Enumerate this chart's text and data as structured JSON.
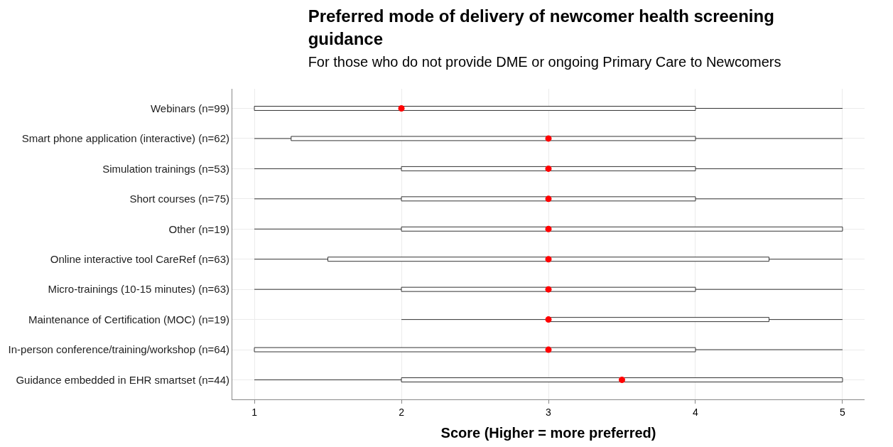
{
  "chart_data": {
    "type": "box",
    "orientation": "horizontal",
    "title": "Preferred mode of delivery of newcomer health screening guidance",
    "subtitle": "For those who do not provide DME or ongoing Primary Care to Newcomers",
    "xlabel": "Score (Higher = more preferred)",
    "categories": [
      "Webinars (n=99)",
      "Smart phone application (interactive) (n=62)",
      "Simulation trainings (n=53)",
      "Short courses (n=75)",
      "Other (n=19)",
      "Online interactive tool CareRef (n=63)",
      "Micro-trainings (10-15 minutes) (n=63)",
      "Maintenance of Certification (MOC) (n=19)",
      "In-person conference/training/workshop (n=64)",
      "Guidance embedded in EHR smartset (n=44)"
    ],
    "xlim": [
      0.85,
      5.15
    ],
    "xticks": [
      1,
      2,
      3,
      4,
      5
    ],
    "grid": true,
    "marker": "circle",
    "series": [
      {
        "type": "scatter",
        "color": "#ff0000",
        "x": [
          "Webinars (n=99)",
          "Smart phone application (interactive) (n=62)",
          "Simulation trainings (n=53)",
          "Short courses (n=75)",
          "Other (n=19)",
          "Online interactive tool CareRef (n=63)",
          "Micro-trainings (10-15 minutes) (n=63)",
          "Maintenance of Certification (MOC) (n=19)",
          "In-person conference/training/workshop (n=64)",
          "Guidance embedded in EHR smartset (n=44)"
        ],
        "values": [
          2,
          3,
          3,
          3,
          3,
          3,
          3,
          3,
          3,
          3.5
        ]
      },
      {
        "color": "#ffffff",
        "boxes": [
          {
            "low": 1,
            "q1": 1,
            "median": 2,
            "q3": 4,
            "high": 5
          },
          {
            "low": 1,
            "q1": 1.25,
            "median": 3,
            "q3": 4,
            "high": 5
          },
          {
            "low": 1,
            "q1": 2,
            "median": 3,
            "q3": 4,
            "high": 5
          },
          {
            "low": 1,
            "q1": 2,
            "median": 3,
            "q3": 4,
            "high": 5
          },
          {
            "low": 1,
            "q1": 2,
            "median": 3,
            "q3": 5,
            "high": 5
          },
          {
            "low": 1,
            "q1": 1.5,
            "median": 3,
            "q3": 4.5,
            "high": 5
          },
          {
            "low": 1,
            "q1": 2,
            "median": 3,
            "q3": 4,
            "high": 5
          },
          {
            "low": 2,
            "q1": 3,
            "median": 3,
            "q3": 4.5,
            "high": 5
          },
          {
            "low": 1,
            "q1": 1,
            "median": 3,
            "q3": 4,
            "high": 5
          },
          {
            "low": 1,
            "q1": 2,
            "median": 3.5,
            "q3": 5,
            "high": 5
          }
        ]
      }
    ]
  }
}
